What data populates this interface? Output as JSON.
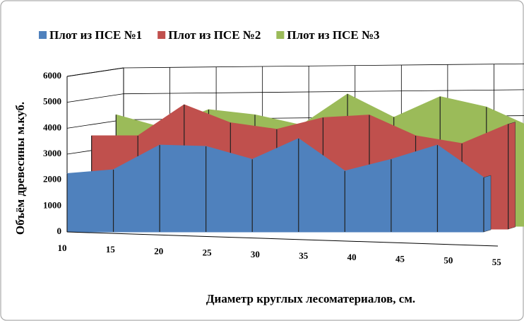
{
  "chart_data": {
    "type": "area3d",
    "x_label": "Диаметр круглых лесоматериалов, см.",
    "y_label": "Объём древесины м.куб.",
    "categories": [
      "10",
      "15",
      "20",
      "25",
      "30",
      "35",
      "40",
      "45",
      "50",
      "55"
    ],
    "series": [
      {
        "name": "Плот из ПСЕ №1",
        "color": "#4f81bd",
        "values": [
          2250,
          2400,
          3350,
          3300,
          2800,
          3600,
          2350,
          2800,
          3350,
          2100
        ]
      },
      {
        "name": "Плот из ПСЕ №2",
        "color": "#c0504d",
        "values": [
          3600,
          3600,
          4800,
          4100,
          3850,
          4300,
          4400,
          3600,
          3300,
          4050
        ]
      },
      {
        "name": "Плот из ПСЕ №3",
        "color": "#9bbb59",
        "values": [
          4300,
          3800,
          4500,
          4300,
          3900,
          5100,
          4200,
          5000,
          4600,
          3800
        ]
      }
    ],
    "ylim": [
      0,
      6000
    ],
    "yticks": [
      0,
      1000,
      2000,
      3000,
      4000,
      5000,
      6000
    ],
    "grid": true,
    "legend": "top"
  }
}
